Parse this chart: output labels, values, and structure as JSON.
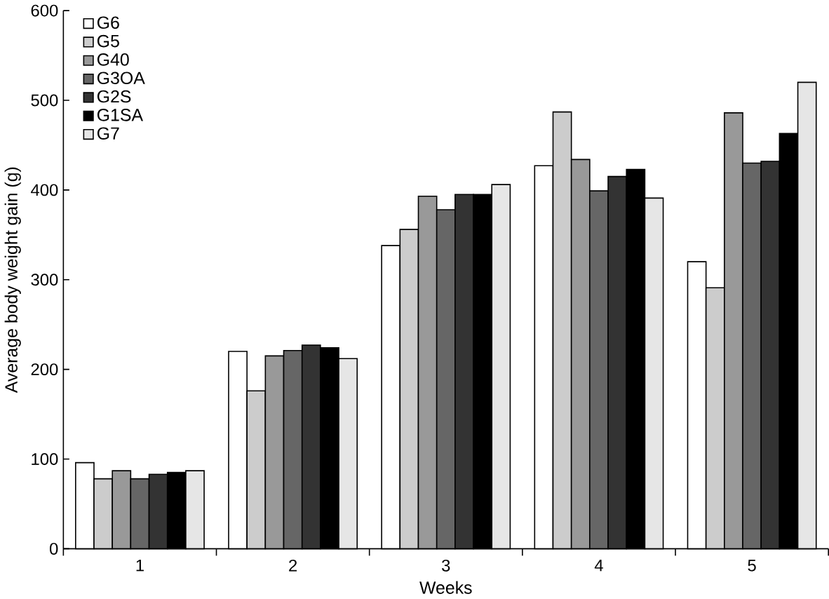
{
  "chart_data": {
    "type": "bar",
    "xlabel": "Weeks",
    "ylabel": "Average body weight gain (g)",
    "categories": [
      "1",
      "2",
      "3",
      "4",
      "5"
    ],
    "series": [
      {
        "name": "G6",
        "color": "#ffffff",
        "values": [
          96,
          220,
          338,
          427,
          320
        ]
      },
      {
        "name": "G5",
        "color": "#cccccc",
        "values": [
          78,
          176,
          356,
          487,
          291
        ]
      },
      {
        "name": "G40",
        "color": "#999999",
        "values": [
          87,
          215,
          393,
          434,
          486
        ]
      },
      {
        "name": "G3OA",
        "color": "#666666",
        "values": [
          78,
          221,
          378,
          399,
          430
        ]
      },
      {
        "name": "G2S",
        "color": "#333333",
        "values": [
          83,
          227,
          395,
          415,
          432
        ]
      },
      {
        "name": "G1SA",
        "color": "#000000",
        "values": [
          85,
          224,
          395,
          423,
          463
        ]
      },
      {
        "name": "G7",
        "color": "#e6e6e6",
        "values": [
          87,
          212,
          406,
          391,
          520
        ]
      }
    ],
    "ylim": [
      0,
      600
    ],
    "yticks": [
      0,
      100,
      200,
      300,
      400,
      500,
      600
    ],
    "legend": "top left",
    "grid": false
  }
}
